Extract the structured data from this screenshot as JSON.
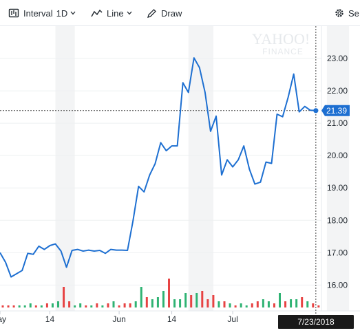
{
  "toolbar": {
    "interval_label": "Interval",
    "interval_value": "1D",
    "chart_type_label": "Line",
    "draw_label": "Draw",
    "settings_label": "Se",
    "icons": [
      "candlestick-icon",
      "chevron-down-icon",
      "line-chart-icon",
      "pencil-icon",
      "gear-icon"
    ]
  },
  "watermark": {
    "line1": "YAHOO!",
    "line2": "FINANCE"
  },
  "chart_data": {
    "type": "line",
    "title": "",
    "xlabel": "",
    "ylabel": "",
    "line_color": "#1d6fd1",
    "x_tick_labels": [
      "ay",
      "14",
      "Jun",
      "14",
      "Jul"
    ],
    "y_tick_labels": [
      "16.00",
      "17.00",
      "18.00",
      "19.00",
      "20.00",
      "21.00",
      "22.00",
      "23.00"
    ],
    "ylim": [
      15.2,
      24.0
    ],
    "grid": true,
    "legend": "none",
    "last_price": "21.39",
    "crosshair_date": "7/23/2018",
    "shaded_bands": [
      [
        10,
        13.5
      ],
      [
        34,
        38.5
      ],
      [
        59,
        63
      ]
    ],
    "series": [
      {
        "values": [
          17.0,
          16.7,
          16.25,
          16.35,
          16.45,
          16.98,
          16.95,
          17.2,
          17.1,
          17.22,
          17.27,
          17.05,
          16.55,
          17.07,
          17.1,
          17.05,
          17.08,
          17.05,
          17.07,
          16.98,
          17.1,
          17.08,
          17.08,
          17.07,
          17.98,
          19.05,
          18.88,
          19.4,
          19.75,
          20.4,
          20.15,
          20.3,
          20.3,
          22.25,
          21.95,
          23.02,
          22.72,
          21.95,
          20.75,
          21.22,
          19.4,
          19.87,
          19.65,
          19.87,
          20.3,
          19.58,
          19.12,
          19.18,
          19.8,
          19.76,
          21.28,
          21.2,
          21.8,
          22.52,
          21.35,
          21.52,
          21.4,
          21.39
        ]
      },
      {
        "name": "Volume",
        "values": [
          1,
          1,
          1,
          1,
          1,
          2,
          1,
          1,
          2,
          2,
          3,
          10,
          3,
          1,
          2,
          1,
          1,
          2,
          1,
          2,
          3,
          1,
          2,
          2,
          3,
          10,
          5,
          4,
          5,
          8,
          14,
          4,
          4,
          7,
          6,
          7,
          8,
          4,
          6,
          3,
          3,
          2,
          1,
          2,
          1,
          2,
          3,
          4,
          3,
          2,
          7,
          3,
          4,
          4,
          5,
          3,
          2,
          1
        ],
        "direction": [
          "dn",
          "dn",
          "dn",
          "up",
          "up",
          "up",
          "dn",
          "up",
          "dn",
          "up",
          "up",
          "dn",
          "dn",
          "up",
          "up",
          "dn",
          "up",
          "dn",
          "up",
          "dn",
          "up",
          "dn",
          "dn",
          "dn",
          "up",
          "up",
          "dn",
          "up",
          "up",
          "up",
          "dn",
          "up",
          "up",
          "up",
          "dn",
          "up",
          "dn",
          "dn",
          "dn",
          "up",
          "dn",
          "up",
          "dn",
          "up",
          "up",
          "dn",
          "dn",
          "up",
          "up",
          "dn",
          "up",
          "dn",
          "up",
          "up",
          "dn",
          "up",
          "dn",
          "dn"
        ]
      }
    ],
    "colors": {
      "up": "#2fb373",
      "down": "#e74343",
      "marker": "#1d6fd1",
      "date_tag": "#1a1a1a"
    }
  }
}
